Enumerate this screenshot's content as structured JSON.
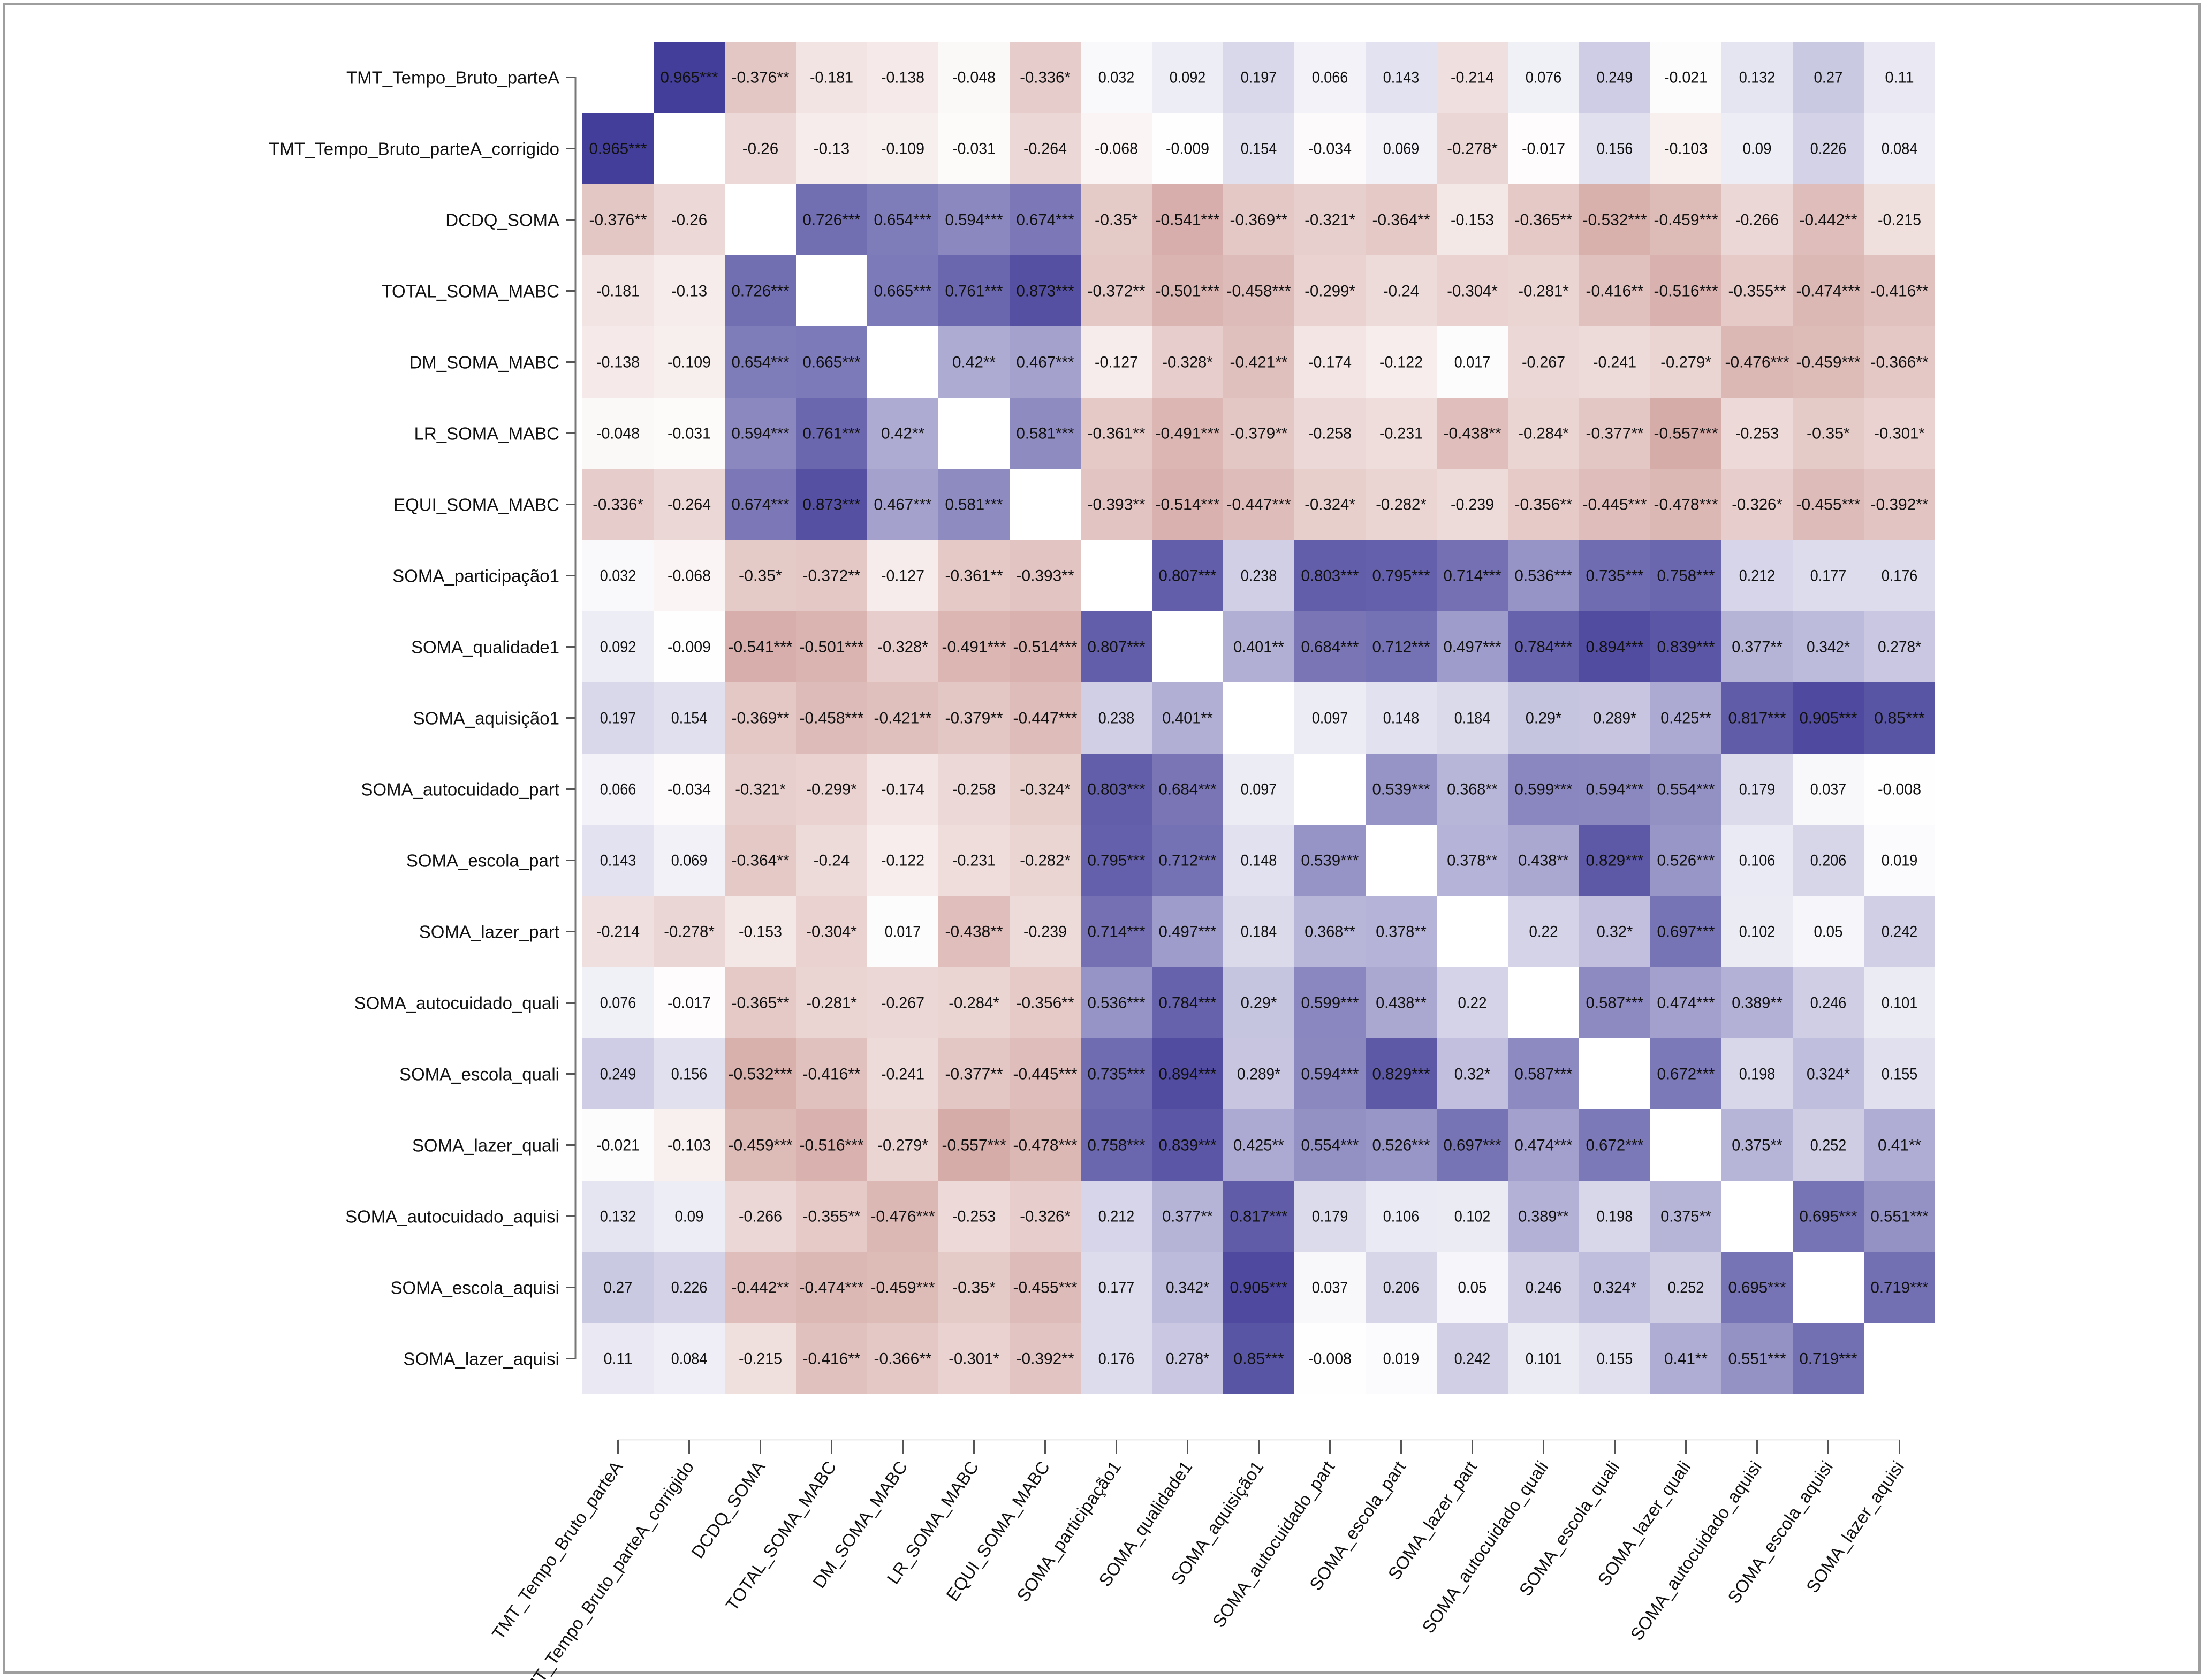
{
  "chart_data": {
    "type": "heatmap",
    "title": "",
    "xlabel": "",
    "ylabel": "",
    "legend": "none",
    "color_scale": {
      "min": -1,
      "mid": 0,
      "max": 1,
      "negative_color": "#b56a63",
      "zero_color": "#ffffff",
      "positive_color": "#3c3795"
    },
    "significance_note": "* p<0.05, ** p<0.01, *** p<0.001",
    "variables": [
      "TMT_Tempo_Bruto_parteA",
      "TMT_Tempo_Bruto_parteA_corrigido",
      "DCDQ_SOMA",
      "TOTAL_SOMA_MABC",
      "DM_SOMA_MABC",
      "LR_SOMA_MABC",
      "EQUI_SOMA_MABC",
      "SOMA_participação1",
      "SOMA_qualidade1",
      "SOMA_aquisição1",
      "SOMA_autocuidado_part",
      "SOMA_escola_part",
      "SOMA_lazer_part",
      "SOMA_autocuidado_quali",
      "SOMA_escola_quali",
      "SOMA_lazer_quali",
      "SOMA_autocuidado_aquisi",
      "SOMA_escola_aquisi",
      "SOMA_lazer_aquisi"
    ],
    "matrix": [
      [
        null,
        "0.965***",
        "-0.376**",
        "-0.181",
        "-0.138",
        "-0.048",
        "-0.336*",
        "0.032",
        "0.092",
        "0.197",
        "0.066",
        "0.143",
        "-0.214",
        "0.076",
        "0.249",
        "-0.021",
        "0.132",
        "0.27",
        "0.11"
      ],
      [
        "0.965***",
        null,
        "-0.26",
        "-0.13",
        "-0.109",
        "-0.031",
        "-0.264",
        "-0.068",
        "-0.009",
        "0.154",
        "-0.034",
        "0.069",
        "-0.278*",
        "-0.017",
        "0.156",
        "-0.103",
        "0.09",
        "0.226",
        "0.084"
      ],
      [
        "-0.376**",
        "-0.26",
        null,
        "0.726***",
        "0.654***",
        "0.594***",
        "0.674***",
        "-0.35*",
        "-0.541***",
        "-0.369**",
        "-0.321*",
        "-0.364**",
        "-0.153",
        "-0.365**",
        "-0.532***",
        "-0.459***",
        "-0.266",
        "-0.442**",
        "-0.215"
      ],
      [
        "-0.181",
        "-0.13",
        "0.726***",
        null,
        "0.665***",
        "0.761***",
        "0.873***",
        "-0.372**",
        "-0.501***",
        "-0.458***",
        "-0.299*",
        "-0.24",
        "-0.304*",
        "-0.281*",
        "-0.416**",
        "-0.516***",
        "-0.355**",
        "-0.474***",
        "-0.416**"
      ],
      [
        "-0.138",
        "-0.109",
        "0.654***",
        "0.665***",
        null,
        "0.42**",
        "0.467***",
        "-0.127",
        "-0.328*",
        "-0.421**",
        "-0.174",
        "-0.122",
        "0.017",
        "-0.267",
        "-0.241",
        "-0.279*",
        "-0.476***",
        "-0.459***",
        "-0.366**"
      ],
      [
        "-0.048",
        "-0.031",
        "0.594***",
        "0.761***",
        "0.42**",
        null,
        "0.581***",
        "-0.361**",
        "-0.491***",
        "-0.379**",
        "-0.258",
        "-0.231",
        "-0.438**",
        "-0.284*",
        "-0.377**",
        "-0.557***",
        "-0.253",
        "-0.35*",
        "-0.301*"
      ],
      [
        "-0.336*",
        "-0.264",
        "0.674***",
        "0.873***",
        "0.467***",
        "0.581***",
        null,
        "-0.393**",
        "-0.514***",
        "-0.447***",
        "-0.324*",
        "-0.282*",
        "-0.239",
        "-0.356**",
        "-0.445***",
        "-0.478***",
        "-0.326*",
        "-0.455***",
        "-0.392**"
      ],
      [
        "0.032",
        "-0.068",
        "-0.35*",
        "-0.372**",
        "-0.127",
        "-0.361**",
        "-0.393**",
        null,
        "0.807***",
        "0.238",
        "0.803***",
        "0.795***",
        "0.714***",
        "0.536***",
        "0.735***",
        "0.758***",
        "0.212",
        "0.177",
        "0.176"
      ],
      [
        "0.092",
        "-0.009",
        "-0.541***",
        "-0.501***",
        "-0.328*",
        "-0.491***",
        "-0.514***",
        "0.807***",
        null,
        "0.401**",
        "0.684***",
        "0.712***",
        "0.497***",
        "0.784***",
        "0.894***",
        "0.839***",
        "0.377**",
        "0.342*",
        "0.278*"
      ],
      [
        "0.197",
        "0.154",
        "-0.369**",
        "-0.458***",
        "-0.421**",
        "-0.379**",
        "-0.447***",
        "0.238",
        "0.401**",
        null,
        "0.097",
        "0.148",
        "0.184",
        "0.29*",
        "0.289*",
        "0.425**",
        "0.817***",
        "0.905***",
        "0.85***"
      ],
      [
        "0.066",
        "-0.034",
        "-0.321*",
        "-0.299*",
        "-0.174",
        "-0.258",
        "-0.324*",
        "0.803***",
        "0.684***",
        "0.097",
        null,
        "0.539***",
        "0.368**",
        "0.599***",
        "0.594***",
        "0.554***",
        "0.179",
        "0.037",
        "-0.008"
      ],
      [
        "0.143",
        "0.069",
        "-0.364**",
        "-0.24",
        "-0.122",
        "-0.231",
        "-0.282*",
        "0.795***",
        "0.712***",
        "0.148",
        "0.539***",
        null,
        "0.378**",
        "0.438**",
        "0.829***",
        "0.526***",
        "0.106",
        "0.206",
        "0.019"
      ],
      [
        "-0.214",
        "-0.278*",
        "-0.153",
        "-0.304*",
        "0.017",
        "-0.438**",
        "-0.239",
        "0.714***",
        "0.497***",
        "0.184",
        "0.368**",
        "0.378**",
        null,
        "0.22",
        "0.32*",
        "0.697***",
        "0.102",
        "0.05",
        "0.242"
      ],
      [
        "0.076",
        "-0.017",
        "-0.365**",
        "-0.281*",
        "-0.267",
        "-0.284*",
        "-0.356**",
        "0.536***",
        "0.784***",
        "0.29*",
        "0.599***",
        "0.438**",
        "0.22",
        null,
        "0.587***",
        "0.474***",
        "0.389**",
        "0.246",
        "0.101"
      ],
      [
        "0.249",
        "0.156",
        "-0.532***",
        "-0.416**",
        "-0.241",
        "-0.377**",
        "-0.445***",
        "0.735***",
        "0.894***",
        "0.289*",
        "0.594***",
        "0.829***",
        "0.32*",
        "0.587***",
        null,
        "0.672***",
        "0.198",
        "0.324*",
        "0.155"
      ],
      [
        "-0.021",
        "-0.103",
        "-0.459***",
        "-0.516***",
        "-0.279*",
        "-0.557***",
        "-0.478***",
        "0.758***",
        "0.839***",
        "0.425**",
        "0.554***",
        "0.526***",
        "0.697***",
        "0.474***",
        "0.672***",
        null,
        "0.375**",
        "0.252",
        "0.41**"
      ],
      [
        "0.132",
        "0.09",
        "-0.266",
        "-0.355**",
        "-0.476***",
        "-0.253",
        "-0.326*",
        "0.212",
        "0.377**",
        "0.817***",
        "0.179",
        "0.106",
        "0.102",
        "0.389**",
        "0.198",
        "0.375**",
        null,
        "0.695***",
        "0.551***"
      ],
      [
        "0.27",
        "0.226",
        "-0.442**",
        "-0.474***",
        "-0.459***",
        "-0.35*",
        "-0.455***",
        "0.177",
        "0.342*",
        "0.905***",
        "0.037",
        "0.206",
        "0.05",
        "0.246",
        "0.324*",
        "0.252",
        "0.695***",
        null,
        "0.719***"
      ],
      [
        "0.11",
        "0.084",
        "-0.215",
        "-0.416**",
        "-0.366**",
        "-0.301*",
        "-0.392**",
        "0.176",
        "0.278*",
        "0.85***",
        "-0.008",
        "0.019",
        "0.242",
        "0.101",
        "0.155",
        "0.41**",
        "0.551***",
        "0.719***",
        null
      ]
    ]
  }
}
